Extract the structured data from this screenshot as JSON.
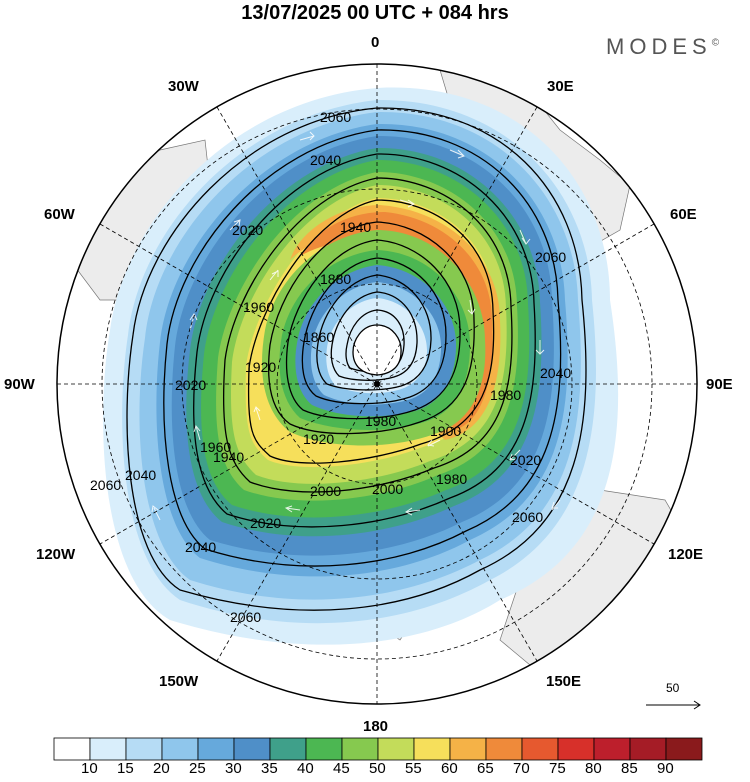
{
  "title": "13/07/2025  00 UTC  + 084 hrs",
  "brand": "MODES",
  "brand_mark": "©",
  "longitude_labels": {
    "lon_0": "0",
    "lon_30e": "30E",
    "lon_60e": "60E",
    "lon_90e": "90E",
    "lon_120e": "120E",
    "lon_150e": "150E",
    "lon_180": "180",
    "lon_150w": "150W",
    "lon_120w": "120W",
    "lon_90w": "90W",
    "lon_60w": "60W",
    "lon_30w": "30W"
  },
  "contour_labels": [
    "2060",
    "2060",
    "2060",
    "2060",
    "2060",
    "2040",
    "2040",
    "2040",
    "2040",
    "2020",
    "2020",
    "2020",
    "2020",
    "2000",
    "2000",
    "1980",
    "1980",
    "1980",
    "1960",
    "1960",
    "1940",
    "1940",
    "1920",
    "1920",
    "1900",
    "1880",
    "1860"
  ],
  "reference_vector": {
    "label": "50"
  },
  "colorbar": {
    "levels": [
      "10",
      "15",
      "20",
      "25",
      "30",
      "35",
      "40",
      "45",
      "50",
      "55",
      "60",
      "65",
      "70",
      "75",
      "80",
      "85",
      "90"
    ],
    "colors": [
      "#ffffff",
      "#d9eefb",
      "#b6dcf5",
      "#8fc6ec",
      "#66a9dc",
      "#4f8fc8",
      "#3fa08a",
      "#4cb752",
      "#86c94f",
      "#c3dc5a",
      "#f6df5b",
      "#f5b247",
      "#ef8a3a",
      "#e6592f",
      "#d7302a",
      "#bd1f2c",
      "#a51c26",
      "#8a1a1c"
    ]
  },
  "field_colors": {
    "land": "#ececec",
    "contour": "#000000",
    "grid": "#000000"
  }
}
